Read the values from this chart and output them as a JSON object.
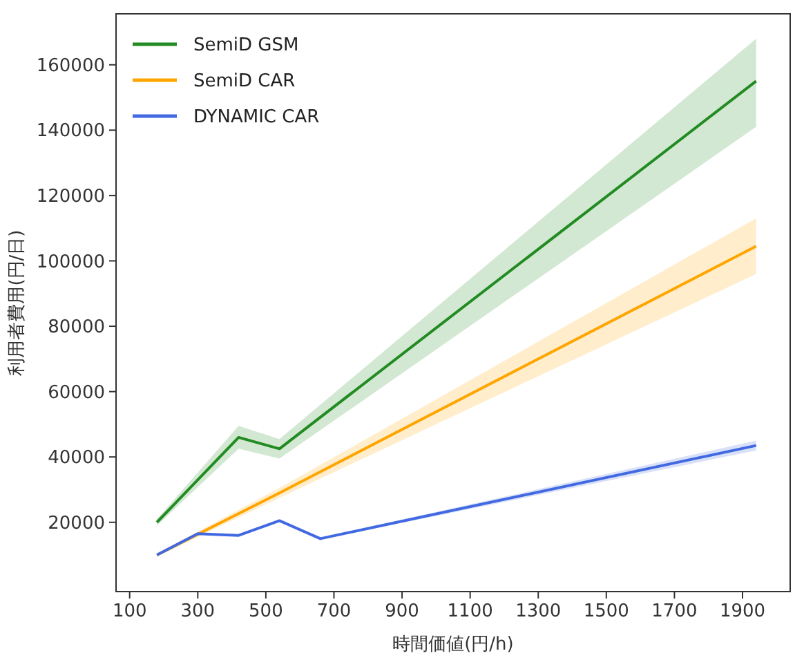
{
  "chart_data": {
    "type": "line",
    "xlabel": "時間価値(円/h)",
    "ylabel": "利用者費用(円/日)",
    "xlim": [
      60,
      2040
    ],
    "xticks": [
      100,
      300,
      500,
      700,
      900,
      1100,
      1300,
      1500,
      1700,
      1900
    ],
    "ylim": [
      -1200,
      175600
    ],
    "yticks": [
      20000,
      40000,
      60000,
      80000,
      100000,
      120000,
      140000,
      160000
    ],
    "grid": false,
    "legend": "top left",
    "line_style": "solid",
    "marker": "none",
    "series": [
      {
        "name": "SemiD GSM",
        "color": "#228b22",
        "x": [
          180,
          420,
          540,
          1940
        ],
        "values": [
          20000,
          46000,
          42500,
          155000
        ],
        "lower": [
          19000,
          42500,
          39500,
          141000
        ],
        "upper": [
          21000,
          49500,
          45500,
          168000
        ]
      },
      {
        "name": "SemiD CAR",
        "color": "#ffa500",
        "x": [
          180,
          540,
          1940
        ],
        "values": [
          10000,
          29000,
          104500
        ],
        "lower": [
          9500,
          27500,
          96000
        ],
        "upper": [
          10500,
          30500,
          113000
        ]
      },
      {
        "name": "DYNAMIC CAR",
        "color": "#4169e1",
        "x": [
          180,
          300,
          420,
          540,
          660,
          1940
        ],
        "values": [
          10000,
          16500,
          16000,
          20500,
          15000,
          43500
        ],
        "lower": [
          9800,
          16200,
          15700,
          20200,
          14700,
          42000
        ],
        "upper": [
          10200,
          16800,
          16300,
          20800,
          15300,
          45000
        ]
      }
    ]
  }
}
